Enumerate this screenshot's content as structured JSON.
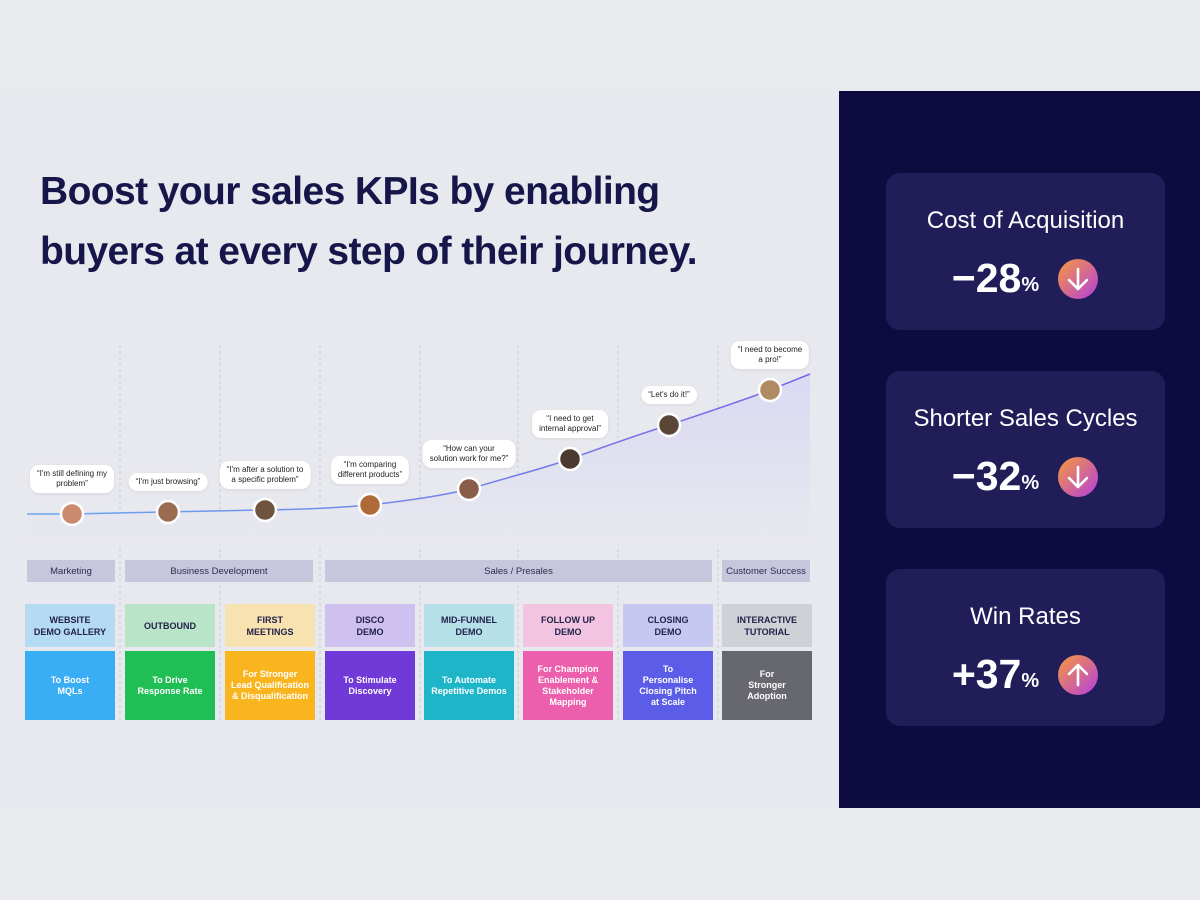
{
  "header": {
    "title_lines": [
      "Boost your sales KPIs by enabling",
      "buyers at every step of their journey."
    ]
  },
  "journey": {
    "quotes": [
      [
        "“I'm still defining my",
        "problem”"
      ],
      [
        "“I'm just browsing”"
      ],
      [
        "“I'm after a solution to",
        "a specific problem”"
      ],
      [
        "“I'm comparing",
        "different products”"
      ],
      [
        "“How can your",
        "solution work for me?”"
      ],
      [
        "“I need to get",
        "internal approval”"
      ],
      [
        "“Let's do it!”"
      ],
      [
        "“I need to become",
        "a pro!”"
      ]
    ],
    "stages": [
      "Marketing",
      "Business Development",
      "Sales / Presales",
      "Customer Success"
    ],
    "cards": [
      {
        "label": [
          "WEBSITE",
          "DEMO GALLERY"
        ],
        "desc": [
          "To Boost",
          "MQLs"
        ]
      },
      {
        "label": [
          "OUTBOUND"
        ],
        "desc": [
          "To Drive",
          "Response Rate"
        ]
      },
      {
        "label": [
          "FIRST",
          "MEETINGS"
        ],
        "desc": [
          "For Stronger",
          "Lead Qualification",
          "& Disqualification"
        ]
      },
      {
        "label": [
          "DISCO",
          "DEMO"
        ],
        "desc": [
          "To Stimulate",
          "Discovery"
        ]
      },
      {
        "label": [
          "MID-FUNNEL",
          "DEMO"
        ],
        "desc": [
          "To Automate",
          "Repetitive Demos"
        ]
      },
      {
        "label": [
          "FOLLOW UP",
          "DEMO"
        ],
        "desc": [
          "For Champion",
          "Enablement &",
          "Stakeholder",
          "Mapping"
        ]
      },
      {
        "label": [
          "CLOSING",
          "DEMO"
        ],
        "desc": [
          "To",
          "Personalise",
          "Closing Pitch",
          "at Scale"
        ]
      },
      {
        "label": [
          "INTERACTIVE",
          "TUTORIAL"
        ],
        "desc": [
          "For",
          "Stronger",
          "Adoption"
        ]
      }
    ]
  },
  "kpis": [
    {
      "title": "Cost of Acquisition",
      "value": "−28",
      "unit": "%",
      "direction": "down"
    },
    {
      "title": "Shorter Sales Cycles",
      "value": "−32",
      "unit": "%",
      "direction": "down"
    },
    {
      "title": "Win Rates",
      "value": "+37",
      "unit": "%",
      "direction": "up"
    }
  ]
}
